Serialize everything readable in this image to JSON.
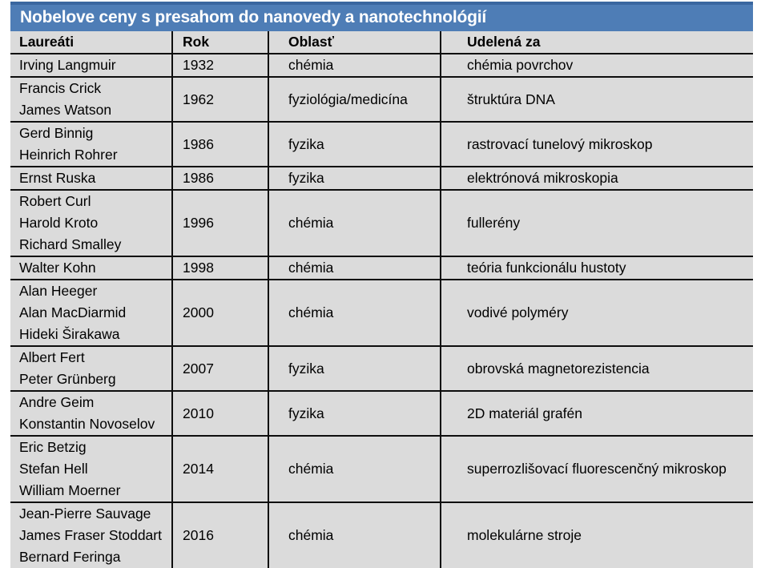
{
  "colors": {
    "title_bar": "#4e7db6",
    "title_bar_top_edge": "#3a67a0",
    "cell_bg": "#dbdbdb",
    "grid_line": "#0d0d0d",
    "title_text": "#ffffff",
    "body_text": "#000000"
  },
  "chart_data": {
    "type": "table",
    "title": "Nobelove ceny s presahom do nanovedy a nanotechnológií",
    "columns": [
      "Laureáti",
      "Rok",
      "Oblasť",
      "Udelená za"
    ],
    "rows": [
      {
        "laureates": [
          "Irving Langmuir"
        ],
        "year": "1932",
        "field": "chémia",
        "awarded_for": "chémia povrchov"
      },
      {
        "laureates": [
          "Francis Crick",
          "James Watson"
        ],
        "year": "1962",
        "field": "fyziológia/medicína",
        "awarded_for": "štruktúra DNA"
      },
      {
        "laureates": [
          "Gerd Binnig",
          "Heinrich Rohrer"
        ],
        "year": "1986",
        "field": "fyzika",
        "awarded_for": "rastrovací tunelový mikroskop"
      },
      {
        "laureates": [
          "Ernst Ruska"
        ],
        "year": "1986",
        "field": "fyzika",
        "awarded_for": "elektrónová mikroskopia"
      },
      {
        "laureates": [
          "Robert Curl",
          "Harold Kroto",
          "Richard Smalley"
        ],
        "year": "1996",
        "field": "chémia",
        "awarded_for": "fullerény"
      },
      {
        "laureates": [
          "Walter Kohn"
        ],
        "year": "1998",
        "field": "chémia",
        "awarded_for": "teória funkcionálu hustoty"
      },
      {
        "laureates": [
          "Alan Heeger",
          "Alan MacDiarmid",
          "Hideki Širakawa"
        ],
        "year": "2000",
        "field": "chémia",
        "awarded_for": "vodivé polyméry"
      },
      {
        "laureates": [
          "Albert Fert",
          "Peter Grünberg"
        ],
        "year": "2007",
        "field": "fyzika",
        "awarded_for": "obrovská magnetorezistencia"
      },
      {
        "laureates": [
          "Andre Geim",
          "Konstantin Novoselov"
        ],
        "year": "2010",
        "field": "fyzika",
        "awarded_for": "2D materiál grafén"
      },
      {
        "laureates": [
          "Eric Betzig",
          "Stefan Hell",
          "William Moerner"
        ],
        "year": "2014",
        "field": "chémia",
        "awarded_for": "superrozlišovací fluorescenčný mikroskop"
      },
      {
        "laureates": [
          "Jean-Pierre Sauvage",
          "James Fraser Stoddart",
          "Bernard Feringa"
        ],
        "year": "2016",
        "field": "chémia",
        "awarded_for": "molekulárne stroje"
      }
    ]
  }
}
